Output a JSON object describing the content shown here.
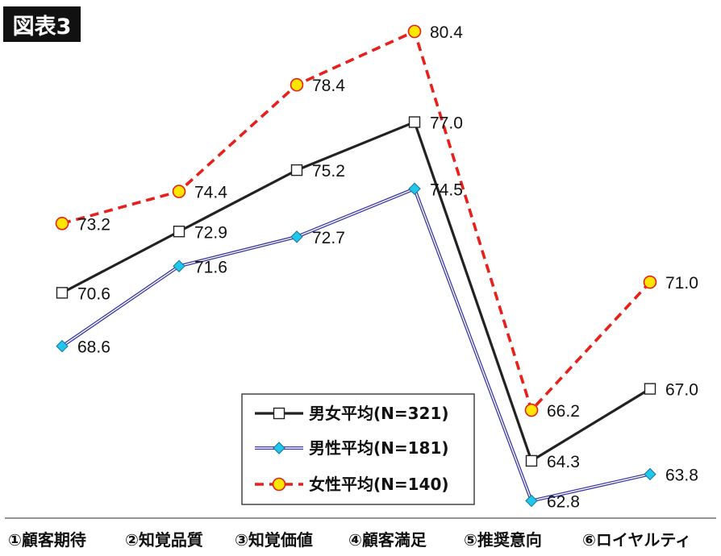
{
  "badge": "図表3",
  "chart_data": {
    "type": "line",
    "categories": [
      "①顧客期待",
      "②知覚品質",
      "③知覚価値",
      "④顧客満足",
      "⑤推奨意向",
      "⑥ロイヤルティ"
    ],
    "ylim": [
      60,
      82
    ],
    "series": [
      {
        "name": "男女平均(N=321)",
        "values": [
          70.6,
          72.9,
          75.2,
          77.0,
          64.3,
          67.0
        ],
        "labels": [
          "70.6",
          "72.9",
          "75.2",
          "77.0",
          "64.3",
          "67.0"
        ],
        "color": "#222222",
        "marker": "square",
        "dash": "solid"
      },
      {
        "name": "男性平均(N=181)",
        "values": [
          68.6,
          71.6,
          72.7,
          74.5,
          62.8,
          63.8
        ],
        "labels": [
          "68.6",
          "71.6",
          "72.7",
          "74.5",
          "62.8",
          "63.8"
        ],
        "color": "#3a3aa8",
        "marker": "diamond",
        "dash": "double"
      },
      {
        "name": "女性平均(N=140)",
        "values": [
          73.2,
          74.4,
          78.4,
          80.4,
          66.2,
          71.0
        ],
        "labels": [
          "73.2",
          "74.4",
          "78.4",
          "80.4",
          "66.2",
          "71.0"
        ],
        "color": "#e8201c",
        "marker": "circle",
        "dash": "dashed"
      }
    ],
    "legend_position": "bottom-center",
    "grid": false,
    "category_label_color": "#111111",
    "marker_fill_colors": {
      "square": "#ffffff",
      "diamond": "#1fc7e8",
      "circle": "#ffe600"
    }
  }
}
